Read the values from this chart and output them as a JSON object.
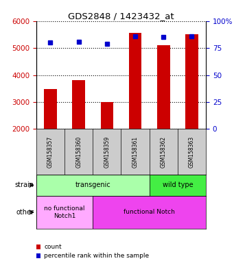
{
  "title": "GDS2848 / 1423432_at",
  "samples": [
    "GSM158357",
    "GSM158360",
    "GSM158359",
    "GSM158361",
    "GSM158362",
    "GSM158363"
  ],
  "counts": [
    3480,
    3820,
    3000,
    5550,
    5100,
    5520
  ],
  "percentile_ranks": [
    80,
    81,
    79,
    86,
    85,
    86
  ],
  "ylim_left": [
    2000,
    6000
  ],
  "ylim_right": [
    0,
    100
  ],
  "bar_color": "#cc0000",
  "dot_color": "#0000cc",
  "left_yticks": [
    2000,
    3000,
    4000,
    5000,
    6000
  ],
  "right_yticks": [
    0,
    25,
    50,
    75,
    100
  ],
  "strain_groups": [
    {
      "label": "transgenic",
      "span": [
        0,
        4
      ],
      "color": "#aaffaa"
    },
    {
      "label": "wild type",
      "span": [
        4,
        6
      ],
      "color": "#44ee44"
    }
  ],
  "other_groups": [
    {
      "label": "no functional\nNotch1",
      "span": [
        0,
        2
      ],
      "color": "#ffaaff"
    },
    {
      "label": "functional Notch",
      "span": [
        2,
        6
      ],
      "color": "#ee44ee"
    }
  ],
  "legend_items": [
    {
      "label": "count",
      "color": "#cc0000"
    },
    {
      "label": "percentile rank within the sample",
      "color": "#0000cc"
    }
  ],
  "tick_label_color_left": "#cc0000",
  "tick_label_color_right": "#0000cc",
  "bg_color": "#ffffff",
  "sample_box_color": "#cccccc"
}
